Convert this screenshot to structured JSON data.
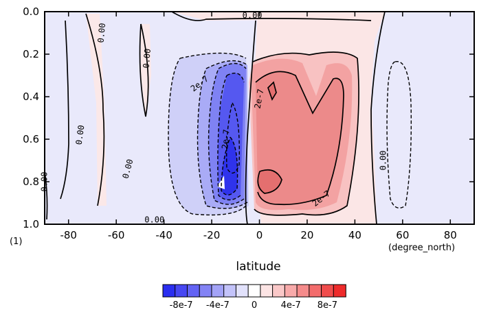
{
  "chart_data": {
    "type": "heatmap",
    "x_range": [
      -90,
      90
    ],
    "y_range": [
      0.0,
      1.0
    ],
    "y_inverted": true,
    "x_ticks": [
      -80,
      -60,
      -40,
      -20,
      0,
      20,
      40,
      60,
      80
    ],
    "y_ticks": [
      "0.0",
      "0.2",
      "0.4",
      "0.6",
      "0.8",
      "1.0"
    ],
    "xlabel": "latitude",
    "x_units": "(degree_north)",
    "y_units": "(1)",
    "contour_labels": [
      {
        "text": "0.00",
        "x": -66,
        "y": 0.1,
        "angle": -85
      },
      {
        "text": "0.00",
        "x": -75,
        "y": 0.58,
        "angle": -82
      },
      {
        "text": "0.00",
        "x": -47,
        "y": 0.22,
        "angle": -85
      },
      {
        "text": "0.00",
        "x": -55,
        "y": 0.74,
        "angle": -75
      },
      {
        "text": "0.00",
        "x": -90,
        "y": 0.8,
        "angle": -90
      },
      {
        "text": "0.00",
        "x": -3,
        "y": 0.02,
        "angle": 0
      },
      {
        "text": "0.00",
        "x": -44,
        "y": 0.98,
        "angle": 0
      },
      {
        "text": "2e-7",
        "x": -25,
        "y": 0.34,
        "angle": -38
      },
      {
        "text": "2e-7",
        "x": -14,
        "y": 0.6,
        "angle": -85
      },
      {
        "text": "2e-7",
        "x": 0,
        "y": 0.41,
        "angle": -80
      },
      {
        "text": "2e-7",
        "x": 26,
        "y": 0.88,
        "angle": -38
      },
      {
        "text": "0.00",
        "x": 52,
        "y": 0.7,
        "angle": -90
      }
    ],
    "colorbar": {
      "colors": [
        "#2a2ef0",
        "#4747f2",
        "#6363f4",
        "#8383f5",
        "#a3a3f7",
        "#c3c3fa",
        "#e2e2fc",
        "#ffffff",
        "#fce4e4",
        "#fac8c8",
        "#f8aaaa",
        "#f58b8b",
        "#f36c6c",
        "#f04c4c",
        "#ee2b2b"
      ],
      "labels": [
        "-8e-7",
        "-4e-7",
        "0",
        "4e-7",
        "8e-7"
      ],
      "label_values": [
        -8e-07,
        -4e-07,
        0,
        4e-07,
        8e-07
      ],
      "range": [
        -1e-06,
        1e-06
      ]
    }
  }
}
